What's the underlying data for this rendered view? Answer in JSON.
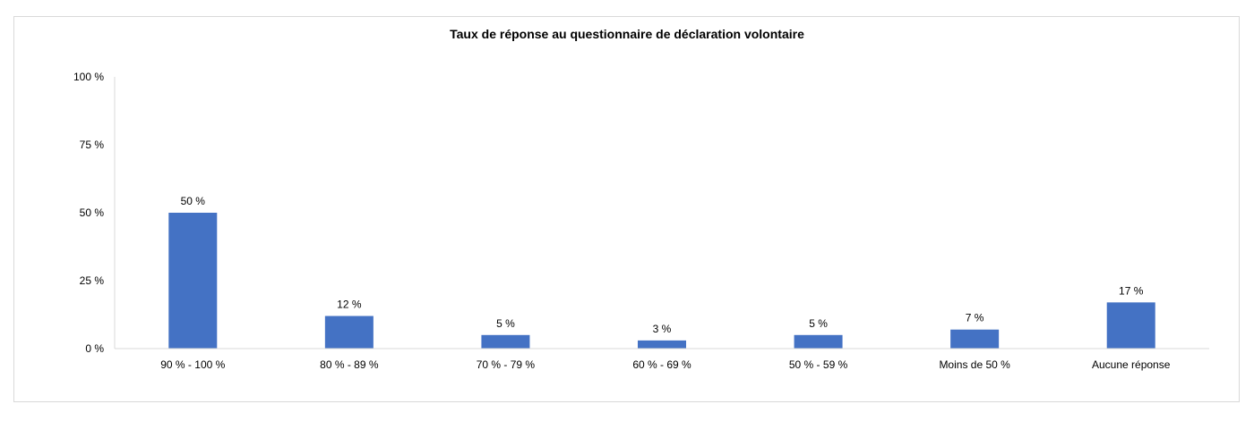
{
  "chart_data": {
    "type": "bar",
    "title": "Taux de réponse au questionnaire de déclaration volontaire",
    "xlabel": "",
    "ylabel": "",
    "categories": [
      "90 % - 100 %",
      "80 % - 89 %",
      "70 % - 79 %",
      "60 % - 69 %",
      "50 % - 59 %",
      "Moins de 50 %",
      "Aucune réponse"
    ],
    "values": [
      50,
      12,
      5,
      3,
      5,
      7,
      17
    ],
    "data_labels": [
      "50 %",
      "12 %",
      "5 %",
      "3 %",
      "5 %",
      "7 %",
      "17 %"
    ],
    "ylim": [
      0,
      100
    ],
    "y_ticks": [
      0,
      25,
      50,
      75,
      100
    ],
    "y_tick_labels": [
      "0 %",
      "25 %",
      "50 %",
      "75 %",
      "100 %"
    ],
    "grid": false,
    "legend": "none",
    "bar_color": "#4472c4"
  }
}
